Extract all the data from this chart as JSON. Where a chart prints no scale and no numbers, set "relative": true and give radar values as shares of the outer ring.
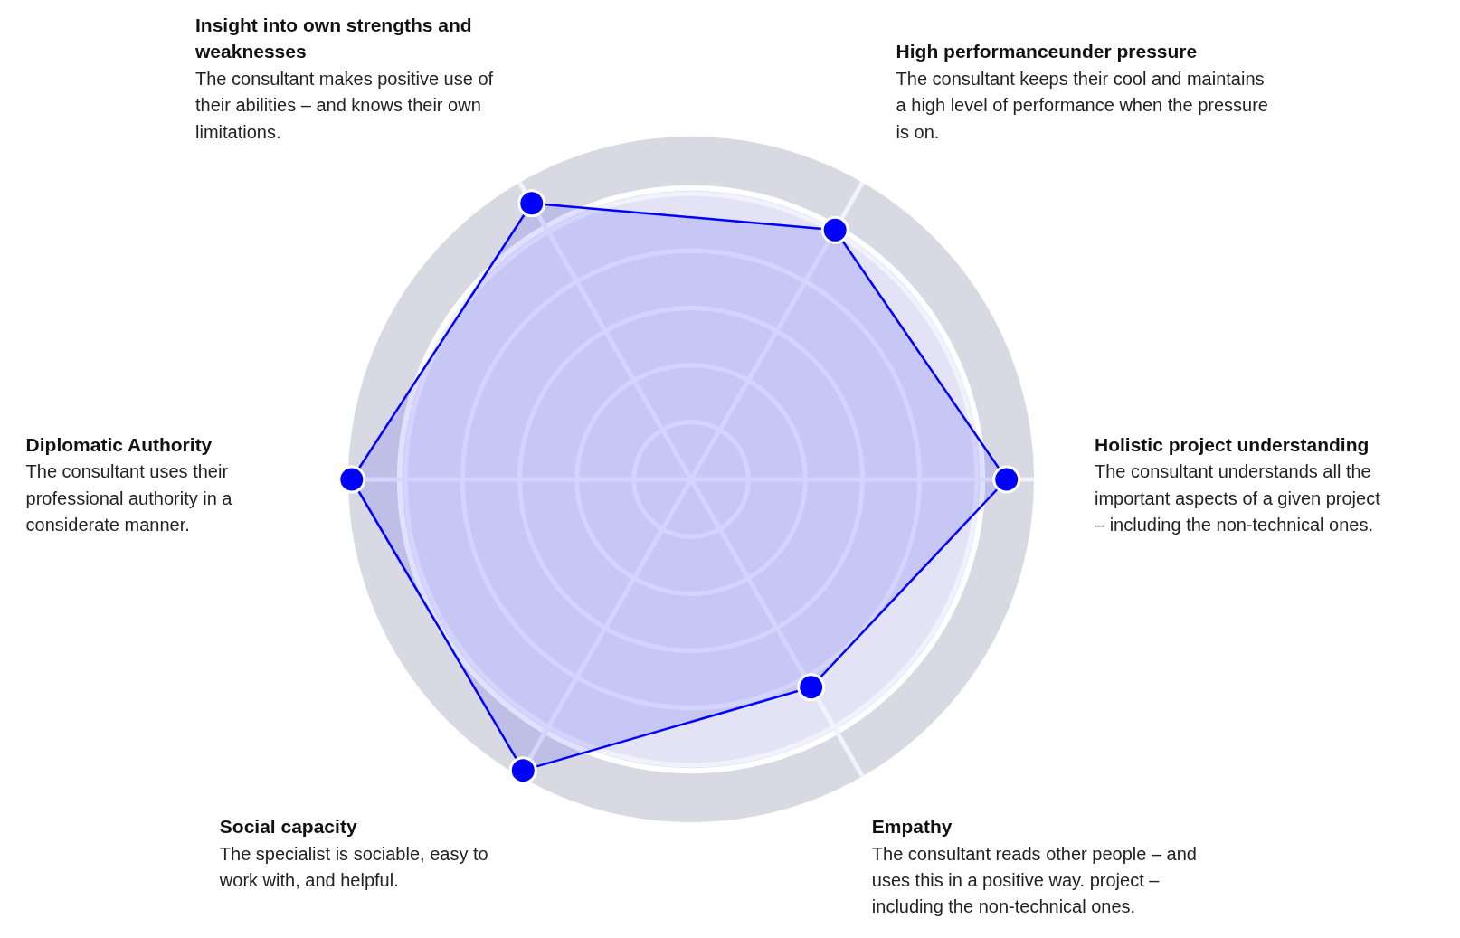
{
  "chart_data": {
    "type": "radar",
    "relative": true,
    "grid": true,
    "marker": "circle",
    "categories": [
      "High performanceunder pressure",
      "Holistic project understanding",
      "Empathy",
      "Social capacity",
      "Diplomatic Authority",
      "Insight into own strengths and weaknesses"
    ],
    "annotations": [
      "The consultant keeps their cool and maintains a high level of performance when the pressure is on.",
      "The consultant understands all the important aspects of a given project – including the non-technical ones.",
      "The consultant reads other people – and uses this in a positive way. project – including the non-technical ones.",
      "The specialist is sociable, easy to work with, and helpful.",
      "The consultant uses their professional authority in a considerate manner.",
      "The consultant makes positive use of their abilities – and knows their own limitations."
    ],
    "series": [
      {
        "color": "#0000ff",
        "values": [
          0.84,
          0.92,
          0.7,
          0.98,
          0.99,
          0.93
        ]
      }
    ]
  }
}
